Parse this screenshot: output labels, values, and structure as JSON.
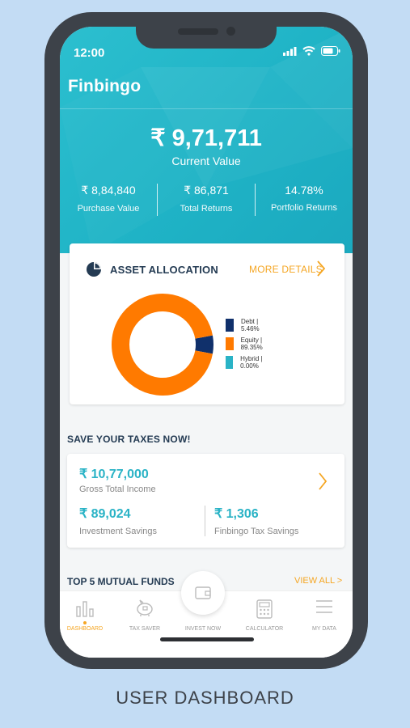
{
  "status_bar": {
    "time": "12:00"
  },
  "app": {
    "logo": "Finbingo"
  },
  "portfolio": {
    "current_value": "₹ 9,71,711",
    "current_value_label": "Current Value",
    "stats": [
      {
        "value": "₹ 8,84,840",
        "label": "Purchase Value"
      },
      {
        "value": "₹ 86,871",
        "label": "Total Returns"
      },
      {
        "value": "14.78%",
        "label": "Portfolio Returns"
      }
    ]
  },
  "asset_allocation": {
    "title": "ASSET ALLOCATION",
    "more_details": "MORE DETAILS",
    "legend": [
      {
        "label": "Debt | 5.46%",
        "color": "#10306b"
      },
      {
        "label": "Equity | 89.35%",
        "color": "#ff7a00"
      },
      {
        "label": "Hybrid | 0.00%",
        "color": "#2ab3c6"
      }
    ],
    "chart_data": {
      "type": "pie",
      "categories": [
        "Debt",
        "Equity",
        "Hybrid"
      ],
      "values": [
        5.46,
        89.35,
        0.0
      ],
      "colors": [
        "#10306b",
        "#ff7a00",
        "#2ab3c6"
      ]
    }
  },
  "tax": {
    "title": "SAVE YOUR TAXES NOW!",
    "gross_income_value": "₹ 10,77,000",
    "gross_income_label": "Gross Total Income",
    "investment_value": "₹ 89,024",
    "investment_label": "Investment Savings",
    "finbingo_value": "₹ 1,306",
    "finbingo_label": "Finbingo Tax Savings"
  },
  "mutual_funds": {
    "title": "TOP 5 MUTUAL FUNDS",
    "view_all": "VIEW ALL >"
  },
  "nav": {
    "items": [
      {
        "label": "DASHBOARD",
        "icon": "bar-chart-icon"
      },
      {
        "label": "TAX SAVER",
        "icon": "piggy-bank-icon"
      },
      {
        "label": "INVEST NOW",
        "icon": "wallet-icon"
      },
      {
        "label": "CALCULATOR",
        "icon": "calculator-icon"
      },
      {
        "label": "MY DATA",
        "icon": "menu-icon"
      }
    ]
  },
  "caption": "USER DASHBOARD"
}
